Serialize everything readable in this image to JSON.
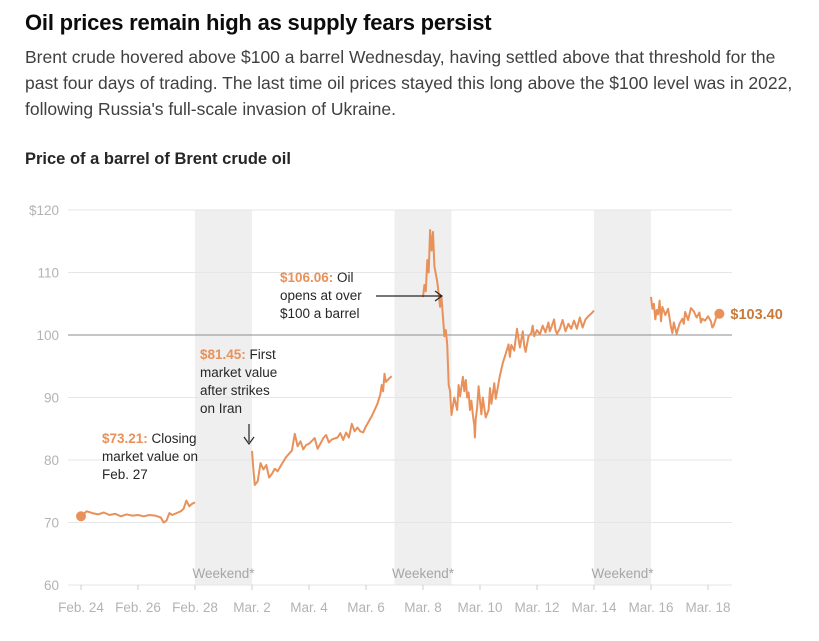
{
  "headline": "Oil prices remain high as supply fears persist",
  "dek": "Brent crude hovered above $100 a barrel Wednesday, having settled above that threshold for the past four days of trading. The last time oil prices stayed this long above the $100 level was in 2022, following Russia's full-scale invasion of Ukraine.",
  "colors": {
    "line": "#e8915a",
    "weekend": "#efefef",
    "grid": "#e6e6e6",
    "reference": "#8c8c8c",
    "axis_text": "#b3b3b3"
  },
  "chart_data": {
    "type": "line",
    "title": "Price of a barrel of Brent crude oil",
    "xlabel": "",
    "ylabel": "",
    "ylim": [
      60,
      120
    ],
    "y_ticks": [
      {
        "value": 120,
        "label": "$120"
      },
      {
        "value": 110,
        "label": "110"
      },
      {
        "value": 100,
        "label": "100"
      },
      {
        "value": 90,
        "label": "90"
      },
      {
        "value": 80,
        "label": "80"
      },
      {
        "value": 70,
        "label": "70"
      },
      {
        "value": 60,
        "label": "60"
      }
    ],
    "x_ticks": [
      {
        "day": 0,
        "label": "Feb. 24"
      },
      {
        "day": 2,
        "label": "Feb. 26"
      },
      {
        "day": 4,
        "label": "Feb. 28"
      },
      {
        "day": 6,
        "label": "Mar. 2"
      },
      {
        "day": 8,
        "label": "Mar. 4"
      },
      {
        "day": 10,
        "label": "Mar. 6"
      },
      {
        "day": 12,
        "label": "Mar. 8"
      },
      {
        "day": 14,
        "label": "Mar. 10"
      },
      {
        "day": 16,
        "label": "Mar. 12"
      },
      {
        "day": 18,
        "label": "Mar. 14"
      },
      {
        "day": 20,
        "label": "Mar. 16"
      },
      {
        "day": 22,
        "label": "Mar. 18"
      }
    ],
    "reference_line": 100,
    "grid": true,
    "weekends": [
      {
        "start": 4,
        "end": 6,
        "label": "Weekend*"
      },
      {
        "start": 11,
        "end": 13,
        "label": "Weekend*"
      },
      {
        "start": 18,
        "end": 20,
        "label": "Weekend*"
      }
    ],
    "series": [
      {
        "segments": [
          [
            [
              0,
              71.0
            ],
            [
              0.2,
              71.8
            ],
            [
              0.4,
              71.5
            ],
            [
              0.6,
              71.3
            ],
            [
              0.8,
              71.6
            ],
            [
              1.0,
              71.2
            ],
            [
              1.2,
              71.4
            ],
            [
              1.4,
              71.0
            ],
            [
              1.6,
              71.3
            ],
            [
              1.8,
              71.1
            ],
            [
              2.0,
              71.2
            ],
            [
              2.2,
              71.0
            ],
            [
              2.4,
              71.2
            ],
            [
              2.6,
              71.1
            ],
            [
              2.8,
              70.8
            ],
            [
              2.9,
              70.0
            ],
            [
              3.0,
              70.3
            ],
            [
              3.1,
              71.5
            ],
            [
              3.2,
              71.2
            ],
            [
              3.4,
              71.6
            ],
            [
              3.5,
              71.8
            ],
            [
              3.6,
              72.2
            ],
            [
              3.7,
              73.5
            ],
            [
              3.8,
              72.6
            ],
            [
              3.9,
              73.0
            ],
            [
              4.0,
              73.21
            ]
          ],
          [
            [
              6.0,
              81.45
            ],
            [
              6.05,
              78.5
            ],
            [
              6.1,
              76.0
            ],
            [
              6.2,
              76.6
            ],
            [
              6.3,
              79.5
            ],
            [
              6.4,
              78.5
            ],
            [
              6.5,
              79.2
            ],
            [
              6.6,
              77.2
            ],
            [
              6.7,
              77.8
            ],
            [
              6.8,
              78.6
            ],
            [
              6.9,
              78.2
            ],
            [
              7.0,
              79.0
            ],
            [
              7.2,
              80.5
            ],
            [
              7.3,
              81.0
            ],
            [
              7.4,
              81.5
            ],
            [
              7.5,
              84.2
            ],
            [
              7.6,
              82.2
            ],
            [
              7.7,
              83.0
            ],
            [
              7.8,
              81.7
            ],
            [
              7.9,
              82.4
            ],
            [
              8.0,
              82.6
            ],
            [
              8.2,
              83.5
            ],
            [
              8.3,
              81.8
            ],
            [
              8.4,
              82.6
            ],
            [
              8.5,
              83.5
            ],
            [
              8.6,
              84.0
            ],
            [
              8.7,
              82.8
            ],
            [
              8.8,
              83.3
            ],
            [
              9.0,
              83.6
            ],
            [
              9.1,
              84.3
            ],
            [
              9.2,
              83.2
            ],
            [
              9.3,
              84.4
            ],
            [
              9.4,
              83.6
            ],
            [
              9.5,
              85.8
            ],
            [
              9.6,
              84.6
            ],
            [
              9.7,
              85.2
            ],
            [
              9.8,
              84.6
            ],
            [
              9.9,
              84.4
            ],
            [
              10.0,
              85.4
            ],
            [
              10.2,
              87.0
            ],
            [
              10.3,
              88.0
            ],
            [
              10.4,
              89.0
            ],
            [
              10.5,
              90.5
            ],
            [
              10.55,
              92.0
            ],
            [
              10.6,
              91.0
            ],
            [
              10.65,
              93.8
            ],
            [
              10.7,
              92.5
            ],
            [
              10.8,
              93.0
            ],
            [
              10.9,
              93.4
            ]
          ],
          [
            [
              12.0,
              106.06
            ],
            [
              12.05,
              108.0
            ],
            [
              12.1,
              107.0
            ],
            [
              12.15,
              112.0
            ],
            [
              12.2,
              110.0
            ],
            [
              12.25,
              116.8
            ],
            [
              12.3,
              113.5
            ],
            [
              12.35,
              116.5
            ],
            [
              12.4,
              111.0
            ],
            [
              12.5,
              108.5
            ],
            [
              12.6,
              104.5
            ],
            [
              12.65,
              106.0
            ],
            [
              12.7,
              103.0
            ],
            [
              12.75,
              99.8
            ],
            [
              12.8,
              100.8
            ],
            [
              12.85,
              98.5
            ],
            [
              12.9,
              92.0
            ],
            [
              12.95,
              91.0
            ],
            [
              13.0,
              87.2
            ],
            [
              13.1,
              90.0
            ],
            [
              13.2,
              88.0
            ],
            [
              13.25,
              92.0
            ],
            [
              13.3,
              90.2
            ],
            [
              13.4,
              93.3
            ],
            [
              13.45,
              91.0
            ],
            [
              13.5,
              92.8
            ],
            [
              13.55,
              90.0
            ],
            [
              13.6,
              90.8
            ],
            [
              13.65,
              88.0
            ],
            [
              13.7,
              89.5
            ],
            [
              13.75,
              87.2
            ],
            [
              13.8,
              85.5
            ],
            [
              13.82,
              83.6
            ],
            [
              13.85,
              86.5
            ],
            [
              13.9,
              88.5
            ],
            [
              13.95,
              91.8
            ],
            [
              14.0,
              89.5
            ],
            [
              14.05,
              87.3
            ],
            [
              14.1,
              90.0
            ],
            [
              14.2,
              86.8
            ],
            [
              14.3,
              88.0
            ],
            [
              14.35,
              91.5
            ],
            [
              14.4,
              89.0
            ],
            [
              14.5,
              92.3
            ],
            [
              14.55,
              89.8
            ],
            [
              14.6,
              91.0
            ],
            [
              14.7,
              93.5
            ],
            [
              14.8,
              95.5
            ],
            [
              14.9,
              97.0
            ],
            [
              15.0,
              98.5
            ],
            [
              15.05,
              96.5
            ],
            [
              15.1,
              98.4
            ],
            [
              15.2,
              97.5
            ],
            [
              15.3,
              101.0
            ],
            [
              15.4,
              98.0
            ],
            [
              15.5,
              100.6
            ],
            [
              15.55,
              98.3
            ],
            [
              15.6,
              97.3
            ],
            [
              15.7,
              99.8
            ],
            [
              15.8,
              100.3
            ],
            [
              15.85,
              101.5
            ],
            [
              15.9,
              99.8
            ],
            [
              16.0,
              100.8
            ],
            [
              16.1,
              100.1
            ],
            [
              16.2,
              101.5
            ],
            [
              16.3,
              100.4
            ],
            [
              16.4,
              102.0
            ],
            [
              16.45,
              100.6
            ],
            [
              16.5,
              101.2
            ],
            [
              16.6,
              102.5
            ],
            [
              16.65,
              100.8
            ],
            [
              16.7,
              100.2
            ],
            [
              16.8,
              101.0
            ],
            [
              16.9,
              102.4
            ],
            [
              17.0,
              100.6
            ],
            [
              17.1,
              101.8
            ],
            [
              17.2,
              101.0
            ],
            [
              17.3,
              102.3
            ],
            [
              17.4,
              101.0
            ],
            [
              17.5,
              102.8
            ],
            [
              17.6,
              101.2
            ],
            [
              17.7,
              102.5
            ],
            [
              17.8,
              103.0
            ],
            [
              17.9,
              103.4
            ],
            [
              18.0,
              103.9
            ]
          ],
          [
            [
              20.0,
              106.1
            ],
            [
              20.05,
              104.2
            ],
            [
              20.1,
              105.0
            ],
            [
              20.15,
              102.5
            ],
            [
              20.2,
              104.0
            ],
            [
              20.25,
              103.3
            ],
            [
              20.3,
              105.5
            ],
            [
              20.35,
              102.2
            ],
            [
              20.4,
              104.5
            ],
            [
              20.5,
              103.2
            ],
            [
              20.6,
              104.2
            ],
            [
              20.7,
              101.3
            ],
            [
              20.75,
              100.3
            ],
            [
              20.8,
              102.0
            ],
            [
              20.9,
              100.2
            ],
            [
              21.0,
              101.8
            ],
            [
              21.1,
              102.6
            ],
            [
              21.15,
              101.8
            ],
            [
              21.2,
              103.7
            ],
            [
              21.3,
              102.4
            ],
            [
              21.4,
              104.3
            ],
            [
              21.5,
              103.8
            ],
            [
              21.6,
              102.8
            ],
            [
              21.7,
              103.6
            ],
            [
              21.75,
              102.0
            ],
            [
              21.8,
              102.6
            ],
            [
              21.9,
              102.3
            ],
            [
              22.0,
              103.0
            ],
            [
              22.1,
              102.2
            ],
            [
              22.15,
              101.2
            ],
            [
              22.2,
              101.5
            ],
            [
              22.3,
              103.0
            ],
            [
              22.4,
              103.4
            ]
          ]
        ]
      }
    ],
    "markers": [
      {
        "x": 0,
        "y": 71.0
      },
      {
        "x": 22.4,
        "y": 103.4,
        "label": "$103.40"
      }
    ],
    "annotations": [
      {
        "value": "$73.21:",
        "text": "Closing",
        "lines": [
          "market value on",
          "Feb. 27"
        ]
      },
      {
        "value": "$81.45:",
        "text": "First",
        "lines": [
          "market value",
          "after strikes",
          "on Iran"
        ]
      },
      {
        "value": "$106.06:",
        "text": "Oil",
        "lines": [
          "opens at over",
          "$100 a barrel"
        ]
      }
    ]
  }
}
